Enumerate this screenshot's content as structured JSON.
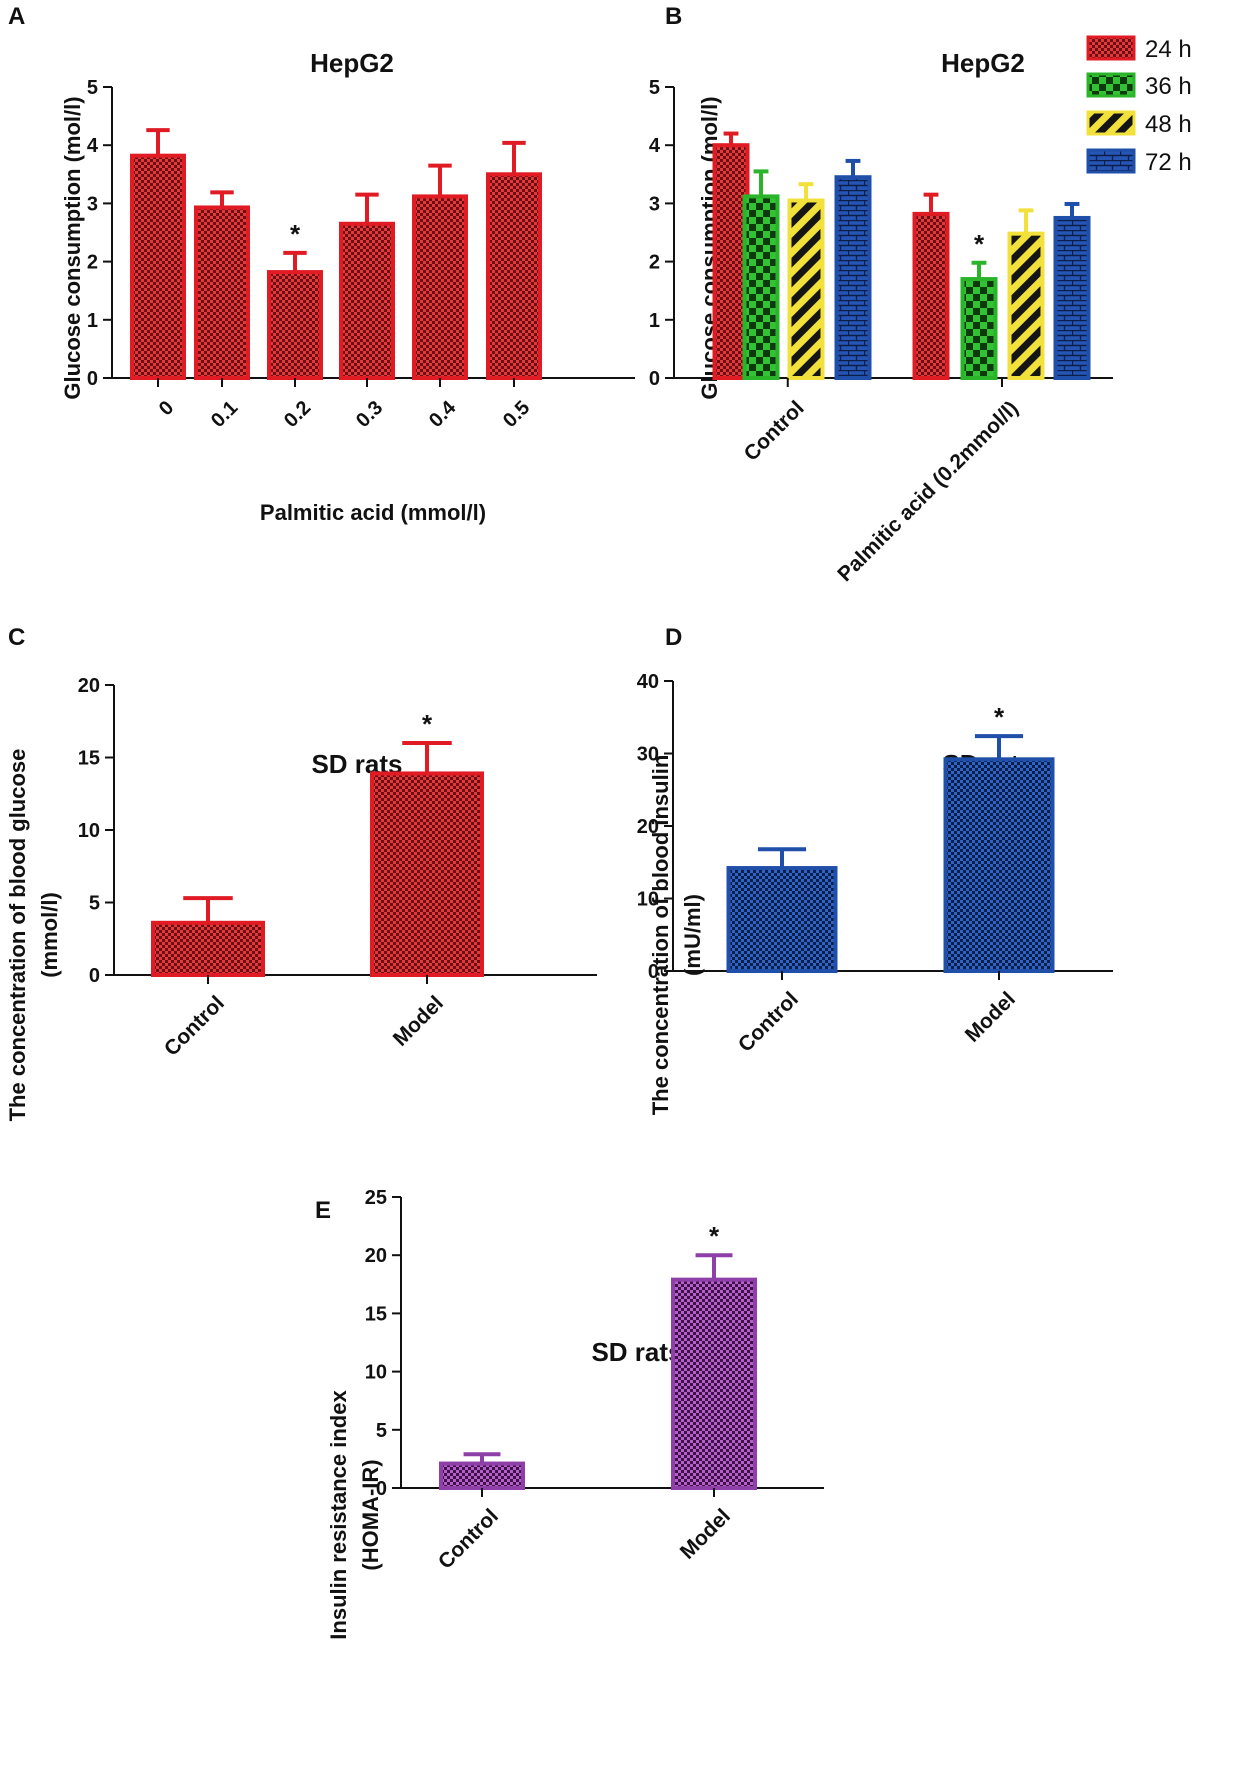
{
  "colors": {
    "red": "#e01b24",
    "red_fill": "#6b0f14",
    "green": "#2ab42a",
    "green_fill": "#0d3a0d",
    "yellow": "#f1e13a",
    "yellow_fill": "#1a1a1a",
    "blue": "#1f4fa8",
    "blue_fill": "#0c1f4a",
    "purple": "#8e3fa8",
    "purple_fill": "#3e1147",
    "axis": "#111111"
  },
  "chart_data": [
    {
      "panel": "A",
      "type": "bar",
      "title": "HepG2",
      "xlabel": "Palmitic acid (mmol/l)",
      "ylabel": "Glucose consumption  (mol/l)",
      "ylim": [
        0,
        5
      ],
      "yticks": [
        "0",
        "1",
        "2",
        "3",
        "4",
        "5"
      ],
      "categories": [
        "0",
        "0.1",
        "0.2",
        "0.3",
        "0.4",
        "0.5"
      ],
      "series": [
        {
          "name": "HepG2",
          "color": "red",
          "values": [
            3.82,
            2.93,
            1.82,
            2.65,
            3.12,
            3.5
          ],
          "errors": [
            0.44,
            0.26,
            0.33,
            0.5,
            0.53,
            0.54
          ]
        }
      ],
      "annotations": [
        {
          "category": "0.2",
          "text": "*"
        }
      ]
    },
    {
      "panel": "B",
      "type": "bar",
      "title": "HepG2",
      "xlabel": "",
      "ylabel": "Glucose consumption  (mol/l)",
      "ylim": [
        0,
        5
      ],
      "yticks": [
        "0",
        "1",
        "2",
        "3",
        "4",
        "5"
      ],
      "categories": [
        "Control",
        "Palmitic acid (0.2mmol/l)"
      ],
      "legend": [
        "24 h",
        "36 h",
        "48 h",
        "72 h"
      ],
      "series": [
        {
          "name": "24 h",
          "color": "red",
          "pattern": "check",
          "values": [
            4.0,
            2.82
          ],
          "errors": [
            0.2,
            0.33
          ]
        },
        {
          "name": "36 h",
          "color": "green",
          "pattern": "bigcheck",
          "values": [
            3.12,
            1.7
          ],
          "errors": [
            0.43,
            0.28
          ]
        },
        {
          "name": "48 h",
          "color": "yellow",
          "pattern": "stripe",
          "values": [
            3.05,
            2.48
          ],
          "errors": [
            0.28,
            0.4
          ]
        },
        {
          "name": "72 h",
          "color": "blue",
          "pattern": "brick",
          "values": [
            3.45,
            2.75
          ],
          "errors": [
            0.28,
            0.24
          ]
        }
      ],
      "annotations": [
        {
          "category": "Palmitic acid (0.2mmol/l)",
          "series": "36 h",
          "text": "*"
        }
      ]
    },
    {
      "panel": "C",
      "type": "bar",
      "title": "SD rats",
      "xlabel": "",
      "ylabel": "The concentration of blood glucose",
      "ylabel2": "(mmol/l)",
      "ylim": [
        0,
        20
      ],
      "yticks": [
        "0",
        "5",
        "10",
        "15",
        "20"
      ],
      "categories": [
        "Control",
        "Model"
      ],
      "series": [
        {
          "name": "SD rats",
          "color": "red",
          "values": [
            3.6,
            13.9
          ],
          "errors": [
            1.7,
            2.1
          ]
        }
      ],
      "annotations": [
        {
          "category": "Model",
          "text": "*"
        }
      ]
    },
    {
      "panel": "D",
      "type": "bar",
      "title": "SD rats",
      "xlabel": "",
      "ylabel": "The concentration of blood insulin",
      "ylabel2": "(mU/ml)",
      "ylim": [
        0,
        40
      ],
      "yticks": [
        "0",
        "10",
        "20",
        "30",
        "40"
      ],
      "categories": [
        "Control",
        "Model"
      ],
      "series": [
        {
          "name": "SD rats",
          "color": "blue",
          "values": [
            14.2,
            29.2
          ],
          "errors": [
            2.6,
            3.2
          ]
        }
      ],
      "annotations": [
        {
          "category": "Model",
          "text": "*"
        }
      ]
    },
    {
      "panel": "E",
      "type": "bar",
      "title": "SD rats",
      "xlabel": "",
      "ylabel": "Insulin resistance index",
      "ylabel2": "(HOMA-IR)",
      "ylim": [
        0,
        25
      ],
      "yticks": [
        "0",
        "5",
        "10",
        "15",
        "20",
        "25"
      ],
      "categories": [
        "Control",
        "Model"
      ],
      "series": [
        {
          "name": "SD rats",
          "color": "purple",
          "values": [
            2.1,
            17.9
          ],
          "errors": [
            0.8,
            2.1
          ]
        }
      ],
      "annotations": [
        {
          "category": "Model",
          "text": "*"
        }
      ]
    }
  ]
}
